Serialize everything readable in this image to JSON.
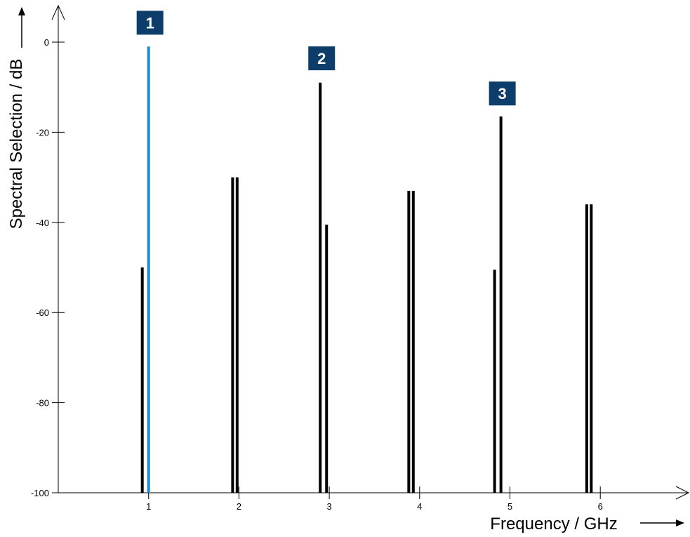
{
  "chart_data": {
    "type": "bar",
    "title": "",
    "xlabel": "Frequency / GHz",
    "ylabel": "Spectral Selection / dB",
    "xlim": [
      0,
      7
    ],
    "ylim": [
      -100,
      7
    ],
    "xticks": [
      "1",
      "2",
      "3",
      "4",
      "5",
      "6"
    ],
    "yticks": [
      "0",
      "-20",
      "-40",
      "-60",
      "-80",
      "-100"
    ],
    "grid": false,
    "legend": "none",
    "colors": {
      "main": "#000000",
      "highlight": "#1a8ad4",
      "marker_bg": "#0d3d6b",
      "marker_text": "#ffffff"
    },
    "lines": [
      {
        "x": 0.93,
        "value": -50,
        "highlight": false
      },
      {
        "x": 1.0,
        "value": -1,
        "highlight": true
      },
      {
        "x": 1.93,
        "value": -30,
        "highlight": false
      },
      {
        "x": 1.98,
        "value": -30,
        "highlight": false
      },
      {
        "x": 2.9,
        "value": -9,
        "highlight": false
      },
      {
        "x": 2.97,
        "value": -40.5,
        "highlight": false
      },
      {
        "x": 3.88,
        "value": -33,
        "highlight": false
      },
      {
        "x": 3.93,
        "value": -33,
        "highlight": false
      },
      {
        "x": 4.83,
        "value": -50.5,
        "highlight": false
      },
      {
        "x": 4.9,
        "value": -16.5,
        "highlight": false
      },
      {
        "x": 5.85,
        "value": -36,
        "highlight": false
      },
      {
        "x": 5.9,
        "value": -36,
        "highlight": false
      }
    ],
    "markers": [
      {
        "label": "1",
        "x": 1.0,
        "y": 4.3
      },
      {
        "label": "2",
        "x": 2.9,
        "y": -3.6
      },
      {
        "label": "3",
        "x": 4.9,
        "y": -11.4
      }
    ]
  }
}
